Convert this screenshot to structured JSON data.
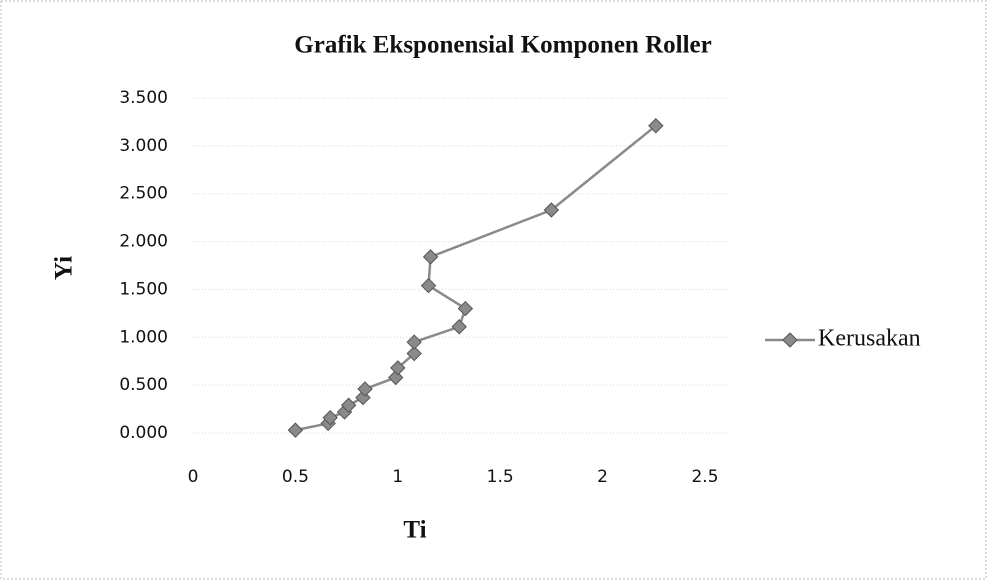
{
  "chart_data": {
    "type": "line",
    "title": "Grafik Eksponensial Komponen Roller",
    "x_label": "Ti",
    "y_label": "Yi",
    "x": [
      0.5,
      0.66,
      0.67,
      0.74,
      0.76,
      0.83,
      0.84,
      0.99,
      1.0,
      1.08,
      1.08,
      1.3,
      1.33,
      1.15,
      1.16,
      1.75,
      2.26
    ],
    "series": [
      {
        "name": "Kerusakan",
        "color": "#8a8a8a",
        "values": [
          0.03,
          0.1,
          0.16,
          0.22,
          0.29,
          0.37,
          0.46,
          0.58,
          0.68,
          0.83,
          0.95,
          1.11,
          1.3,
          1.54,
          1.84,
          2.33,
          3.21
        ]
      }
    ],
    "xlim": [
      0,
      2.5
    ],
    "xticks": [
      0,
      0.5,
      1,
      1.5,
      2,
      2.5
    ],
    "ylim": [
      0,
      3.5
    ],
    "yticks": [
      {
        "value": 0,
        "label": "0.000"
      },
      {
        "value": 0.5,
        "label": "0.500"
      },
      {
        "value": 1,
        "label": "1.000"
      },
      {
        "value": 1.5,
        "label": "1.500"
      },
      {
        "value": 2,
        "label": "2.000"
      },
      {
        "value": 2.5,
        "label": "2.500"
      },
      {
        "value": 3,
        "label": "3.000"
      },
      {
        "value": 3.5,
        "label": "3.500"
      }
    ],
    "grid": true,
    "legend": "right"
  }
}
